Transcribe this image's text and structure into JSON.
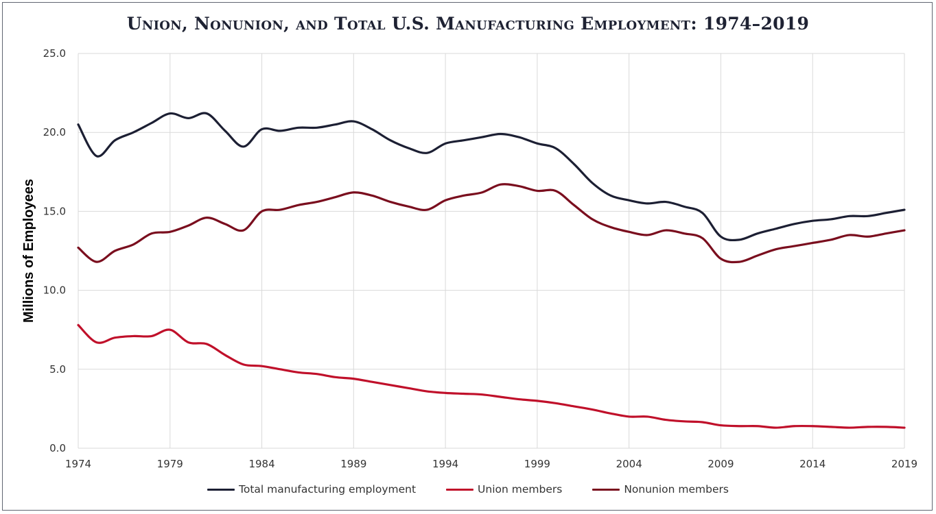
{
  "chart_data": {
    "type": "line",
    "title": "Union, Nonunion, and Total U.S. Manufacturing Employment: 1974–2019",
    "ylabel": "Millions of Employees",
    "xlabel": "",
    "xlim": [
      1974,
      2019
    ],
    "ylim": [
      0,
      25
    ],
    "x_ticks": [
      "1974",
      "1979",
      "1984",
      "1989",
      "1994",
      "1999",
      "2004",
      "2009",
      "2014",
      "2019"
    ],
    "y_ticks": [
      "0.0",
      "5.0",
      "10.0",
      "15.0",
      "20.0",
      "25.0"
    ],
    "grid": true,
    "legend_position": "bottom",
    "x": [
      1974,
      1975,
      1976,
      1977,
      1978,
      1979,
      1980,
      1981,
      1982,
      1983,
      1984,
      1985,
      1986,
      1987,
      1988,
      1989,
      1990,
      1991,
      1992,
      1993,
      1994,
      1995,
      1996,
      1997,
      1998,
      1999,
      2000,
      2001,
      2002,
      2003,
      2004,
      2005,
      2006,
      2007,
      2008,
      2009,
      2010,
      2011,
      2012,
      2013,
      2014,
      2015,
      2016,
      2017,
      2018,
      2019
    ],
    "series": [
      {
        "name": "Total manufacturing employment",
        "color": "#1c1f33",
        "values": [
          20.5,
          18.5,
          19.5,
          20.0,
          20.6,
          21.2,
          20.9,
          21.2,
          20.1,
          19.1,
          20.2,
          20.1,
          20.3,
          20.3,
          20.5,
          20.7,
          20.2,
          19.5,
          19.0,
          18.7,
          19.3,
          19.5,
          19.7,
          19.9,
          19.7,
          19.3,
          19.0,
          18.0,
          16.8,
          16.0,
          15.7,
          15.5,
          15.6,
          15.3,
          14.9,
          13.4,
          13.2,
          13.6,
          13.9,
          14.2,
          14.4,
          14.5,
          14.7,
          14.7,
          14.9,
          15.1
        ]
      },
      {
        "name": "Union members",
        "color": "#c0102a",
        "values": [
          7.8,
          6.7,
          7.0,
          7.1,
          7.1,
          7.5,
          6.7,
          6.6,
          5.9,
          5.3,
          5.2,
          5.0,
          4.8,
          4.7,
          4.5,
          4.4,
          4.2,
          4.0,
          3.8,
          3.6,
          3.5,
          3.45,
          3.4,
          3.25,
          3.1,
          3.0,
          2.85,
          2.65,
          2.45,
          2.2,
          2.0,
          2.0,
          1.8,
          1.7,
          1.65,
          1.45,
          1.4,
          1.4,
          1.3,
          1.4,
          1.4,
          1.35,
          1.3,
          1.35,
          1.35,
          1.3
        ]
      },
      {
        "name": "Nonunion members",
        "color": "#7a0e1e",
        "values": [
          12.7,
          11.8,
          12.5,
          12.9,
          13.6,
          13.7,
          14.1,
          14.6,
          14.2,
          13.8,
          15.0,
          15.1,
          15.4,
          15.6,
          15.9,
          16.2,
          16.0,
          15.6,
          15.3,
          15.1,
          15.7,
          16.0,
          16.2,
          16.7,
          16.6,
          16.3,
          16.3,
          15.4,
          14.5,
          14.0,
          13.7,
          13.5,
          13.8,
          13.6,
          13.3,
          12.0,
          11.8,
          12.2,
          12.6,
          12.8,
          13.0,
          13.2,
          13.5,
          13.4,
          13.6,
          13.8
        ]
      }
    ]
  }
}
